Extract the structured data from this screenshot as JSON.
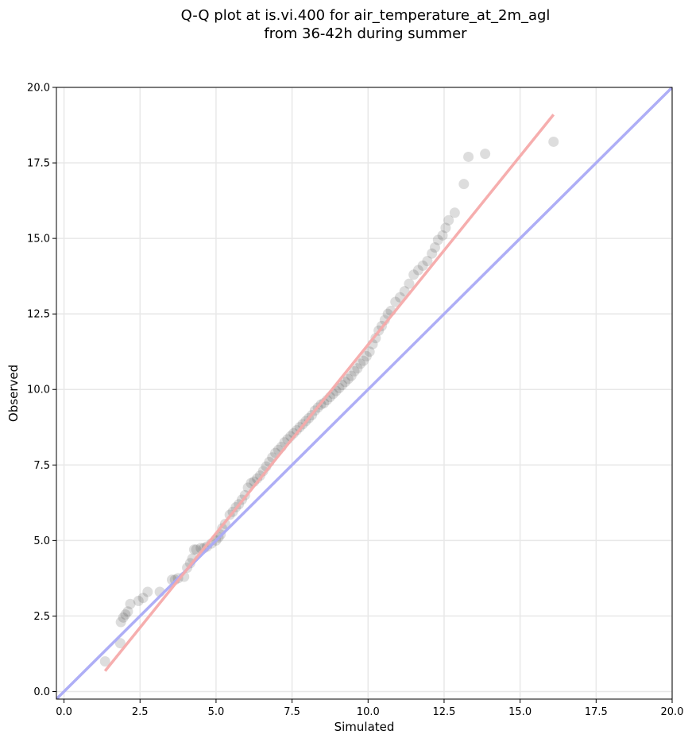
{
  "chart_data": {
    "type": "scatter",
    "title_lines": [
      "Q-Q plot at is.vi.400 for air_temperature_at_2m_agl",
      "from 36-42h during summer"
    ],
    "xlabel": "Simulated",
    "ylabel": "Observed",
    "xlim": [
      -0.25,
      20.0
    ],
    "ylim": [
      -0.25,
      20.0
    ],
    "xticks": [
      0.0,
      2.5,
      5.0,
      7.5,
      10.0,
      12.5,
      15.0,
      17.5,
      20.0
    ],
    "yticks": [
      0.0,
      2.5,
      5.0,
      7.5,
      10.0,
      12.5,
      15.0,
      17.5,
      20.0
    ],
    "xtick_labels": [
      "0.0",
      "2.5",
      "5.0",
      "7.5",
      "10.0",
      "12.5",
      "15.0",
      "17.5",
      "20.0"
    ],
    "ytick_labels": [
      "0.0",
      "2.5",
      "5.0",
      "7.5",
      "10.0",
      "12.5",
      "15.0",
      "17.5",
      "20.0"
    ],
    "grid": true,
    "colors": {
      "points": "#333333",
      "identity_line": "#aaaaf5",
      "fit_line": "#f5aaaa",
      "grid": "#e8e8e8"
    },
    "reference_lines": [
      {
        "kind": "identity",
        "x": [
          -0.25,
          20.0
        ],
        "y": [
          -0.25,
          20.0
        ]
      },
      {
        "kind": "fit",
        "x": [
          1.35,
          16.1
        ],
        "y": [
          0.68,
          19.1
        ]
      }
    ],
    "series": [
      {
        "x": [
          1.35,
          1.85,
          1.87,
          1.95,
          2.02,
          2.1,
          2.18,
          2.45,
          2.6,
          2.75,
          3.15,
          3.55,
          3.65,
          3.75,
          3.95,
          4.05,
          4.15,
          4.22,
          4.28,
          4.35,
          4.5,
          4.6,
          4.7,
          4.85,
          5.0,
          5.08,
          5.15,
          5.2,
          5.3,
          5.45,
          5.55,
          5.65,
          5.75,
          5.85,
          5.95,
          6.05,
          6.15,
          6.25,
          6.35,
          6.45,
          6.55,
          6.65,
          6.75,
          6.85,
          6.95,
          7.05,
          7.15,
          7.25,
          7.35,
          7.45,
          7.55,
          7.65,
          7.75,
          7.85,
          7.95,
          8.05,
          8.15,
          8.25,
          8.35,
          8.45,
          8.55,
          8.65,
          8.75,
          8.85,
          8.95,
          9.05,
          9.15,
          9.25,
          9.35,
          9.45,
          9.55,
          9.65,
          9.75,
          9.85,
          9.95,
          10.05,
          10.15,
          10.25,
          10.35,
          10.45,
          10.55,
          10.65,
          10.75,
          10.9,
          11.05,
          11.2,
          11.35,
          11.5,
          11.65,
          11.8,
          11.95,
          12.1,
          12.2,
          12.3,
          12.45,
          12.55,
          12.65,
          12.85,
          13.15,
          13.3,
          13.85,
          16.1
        ],
        "y": [
          1.0,
          1.6,
          2.3,
          2.45,
          2.55,
          2.65,
          2.9,
          3.0,
          3.1,
          3.3,
          3.3,
          3.7,
          3.7,
          3.75,
          3.8,
          4.1,
          4.25,
          4.4,
          4.7,
          4.7,
          4.75,
          4.75,
          4.8,
          4.9,
          5.0,
          5.1,
          5.2,
          5.4,
          5.55,
          5.85,
          5.95,
          6.1,
          6.2,
          6.35,
          6.5,
          6.75,
          6.9,
          6.95,
          7.05,
          7.15,
          7.3,
          7.45,
          7.6,
          7.75,
          7.9,
          8.0,
          8.1,
          8.25,
          8.35,
          8.45,
          8.55,
          8.65,
          8.75,
          8.85,
          8.95,
          9.05,
          9.15,
          9.3,
          9.4,
          9.5,
          9.55,
          9.65,
          9.75,
          9.85,
          9.95,
          10.05,
          10.15,
          10.25,
          10.35,
          10.45,
          10.6,
          10.7,
          10.85,
          10.95,
          11.1,
          11.25,
          11.5,
          11.7,
          11.95,
          12.1,
          12.3,
          12.5,
          12.6,
          12.9,
          13.05,
          13.25,
          13.5,
          13.8,
          13.95,
          14.1,
          14.25,
          14.5,
          14.7,
          14.95,
          15.1,
          15.35,
          15.6,
          15.85,
          16.8,
          17.7,
          17.8,
          18.2
        ]
      }
    ]
  }
}
